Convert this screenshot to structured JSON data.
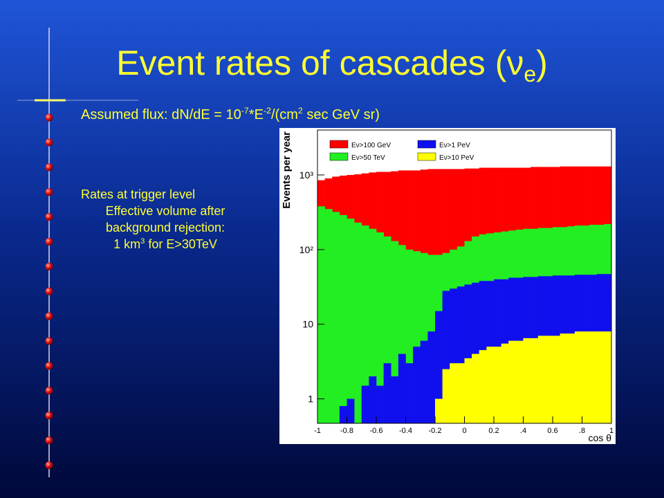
{
  "slide": {
    "title": {
      "main": "Event rates of cascades (",
      "symbol": "ν",
      "sub": "e",
      "close": ")"
    },
    "flux": [
      {
        "text": "Assumed flux: dN/dE = 10"
      },
      {
        "sup": "-7"
      },
      {
        "text": "*E"
      },
      {
        "sup": "-2"
      },
      {
        "text": "/(cm"
      },
      {
        "sup": "2"
      },
      {
        "text": " sec GeV sr)"
      }
    ],
    "rates": [
      [
        {
          "text": "Rates at trigger level"
        }
      ],
      [
        {
          "text": "Effective volume after"
        }
      ],
      [
        {
          "text": "background rejection:"
        }
      ],
      [
        {
          "text": "1 km"
        },
        {
          "sup": "3"
        },
        {
          "text": " for E>30TeV"
        }
      ]
    ]
  },
  "chart_data": {
    "type": "histogram",
    "xlabel": "cos θ",
    "ylabel": "Events per year",
    "log_y": true,
    "legend": "top",
    "bins": [
      -1,
      -0.95,
      -0.9,
      -0.85,
      -0.8,
      -0.75,
      -0.7,
      -0.65,
      -0.6,
      -0.55,
      -0.5,
      -0.45,
      -0.4,
      -0.35,
      -0.3,
      -0.25,
      -0.2,
      -0.15,
      -0.1,
      -0.05,
      0,
      0.05,
      0.1,
      0.15,
      0.2,
      0.25,
      0.3,
      0.35,
      0.4,
      0.45,
      0.5,
      0.55,
      0.6,
      0.65,
      0.7,
      0.75,
      0.8,
      0.85,
      0.9,
      0.95,
      1
    ],
    "series": [
      {
        "name": "Eν>100 GeV",
        "color": "#ff0000",
        "values": [
          850,
          900,
          950,
          980,
          1000,
          1020,
          1050,
          1080,
          1100,
          1100,
          1120,
          1150,
          1150,
          1150,
          1180,
          1200,
          1200,
          1200,
          1200,
          1200,
          1220,
          1220,
          1250,
          1250,
          1250,
          1250,
          1250,
          1250,
          1250,
          1280,
          1280,
          1280,
          1280,
          1300,
          1300,
          1300,
          1300,
          1300,
          1300,
          1300
        ]
      },
      {
        "name": "Eν>50 TeV",
        "color": "#22ee22",
        "values": [
          380,
          350,
          320,
          290,
          260,
          230,
          210,
          190,
          170,
          150,
          130,
          115,
          100,
          95,
          90,
          85,
          85,
          90,
          100,
          110,
          130,
          150,
          160,
          165,
          170,
          175,
          180,
          185,
          190,
          190,
          195,
          195,
          200,
          200,
          205,
          210,
          210,
          215,
          215,
          220
        ]
      },
      {
        "name": "Eν>1 PeV",
        "color": "#1010ee",
        "values": [
          null,
          null,
          null,
          0.8,
          1,
          null,
          1.5,
          2,
          1.5,
          3,
          2,
          4,
          3,
          5,
          6,
          8,
          15,
          28,
          30,
          32,
          34,
          36,
          38,
          38,
          40,
          40,
          42,
          42,
          43,
          43,
          44,
          44,
          45,
          45,
          45,
          46,
          46,
          46,
          47,
          47
        ]
      },
      {
        "name": "Eν>10 PeV",
        "color": "#ffff00",
        "values": [
          null,
          null,
          null,
          null,
          null,
          null,
          null,
          null,
          null,
          null,
          null,
          null,
          null,
          null,
          null,
          null,
          1,
          2.5,
          3,
          3,
          3.5,
          4,
          4.5,
          5,
          5,
          5.5,
          6,
          6,
          6.5,
          6.5,
          7,
          7,
          7,
          7.5,
          7.5,
          8,
          8,
          8,
          8,
          8
        ]
      }
    ],
    "xlim": [
      -1,
      1
    ],
    "ylim": [
      0.47,
      4000
    ],
    "xticks": [
      -1,
      -0.8,
      -0.6,
      -0.4,
      -0.2,
      0,
      0.2,
      {
        "value": 0.4,
        "label": ".4"
      },
      0.6,
      {
        "value": 0.8,
        "label": ".8"
      },
      1
    ],
    "yticks": [
      1,
      10,
      {
        "value": 100,
        "label": "10²"
      },
      {
        "value": 1000,
        "label": "10³"
      }
    ]
  }
}
